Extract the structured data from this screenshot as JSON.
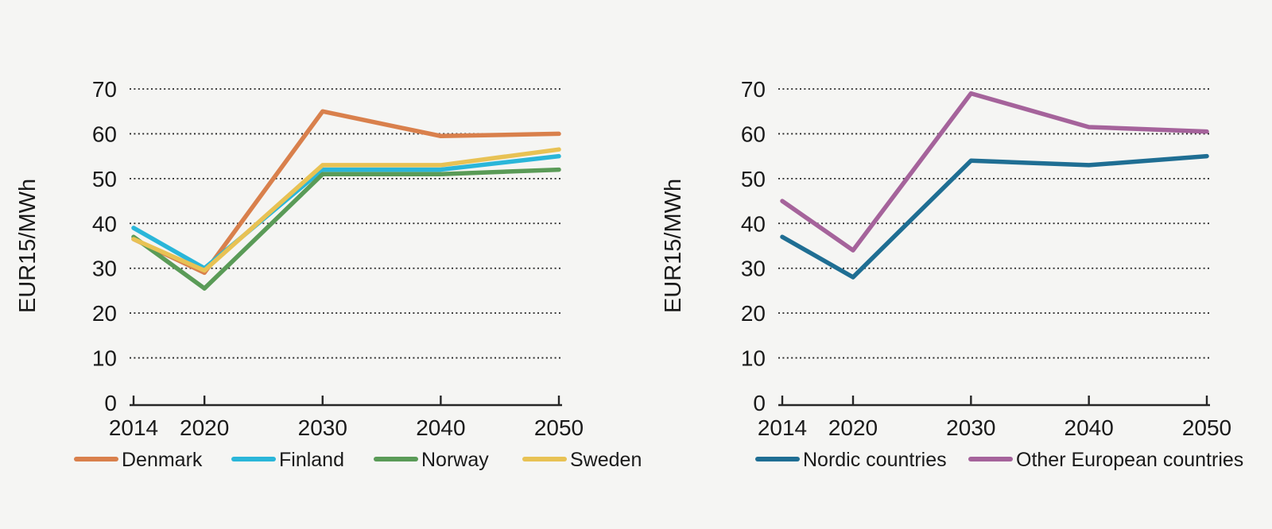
{
  "page": {
    "background_color": "#f5f5f3",
    "text_color": "#1a1a1a",
    "grid_color": "#262626",
    "axis_color": "#262626"
  },
  "chart_data": [
    {
      "type": "line",
      "title": "",
      "xlabel": "",
      "ylabel": "EUR15/MWh",
      "x": [
        2014,
        2020,
        2030,
        2040,
        2050
      ],
      "xtick_labels": [
        "2014",
        "2020",
        "2030",
        "2040",
        "2050"
      ],
      "ylim": [
        0,
        70
      ],
      "yticks": [
        0,
        10,
        20,
        30,
        40,
        50,
        60,
        70
      ],
      "grid": "horizontal-dotted",
      "legend_position": "bottom",
      "series": [
        {
          "name": "Denmark",
          "color": "#d9804c",
          "values": [
            36.5,
            29,
            65,
            59.5,
            60
          ]
        },
        {
          "name": "Finland",
          "color": "#2ab6d9",
          "values": [
            39,
            30,
            52,
            52,
            55
          ]
        },
        {
          "name": "Norway",
          "color": "#5a9b57",
          "values": [
            37,
            25.5,
            51,
            51,
            52
          ]
        },
        {
          "name": "Sweden",
          "color": "#e8c254",
          "values": [
            36.5,
            29.5,
            53,
            53,
            56.5
          ]
        }
      ]
    },
    {
      "type": "line",
      "title": "",
      "xlabel": "",
      "ylabel": "EUR15/MWh",
      "x": [
        2014,
        2020,
        2030,
        2040,
        2050
      ],
      "xtick_labels": [
        "2014",
        "2020",
        "2030",
        "2040",
        "2050"
      ],
      "ylim": [
        0,
        70
      ],
      "yticks": [
        0,
        10,
        20,
        30,
        40,
        50,
        60,
        70
      ],
      "grid": "horizontal-dotted",
      "legend_position": "bottom",
      "series": [
        {
          "name": "Nordic countries",
          "color": "#1f6e93",
          "values": [
            37,
            28,
            54,
            53,
            55
          ]
        },
        {
          "name": "Other European countries",
          "color": "#a5639b",
          "values": [
            45,
            34,
            69,
            61.5,
            60.5
          ]
        }
      ]
    }
  ]
}
